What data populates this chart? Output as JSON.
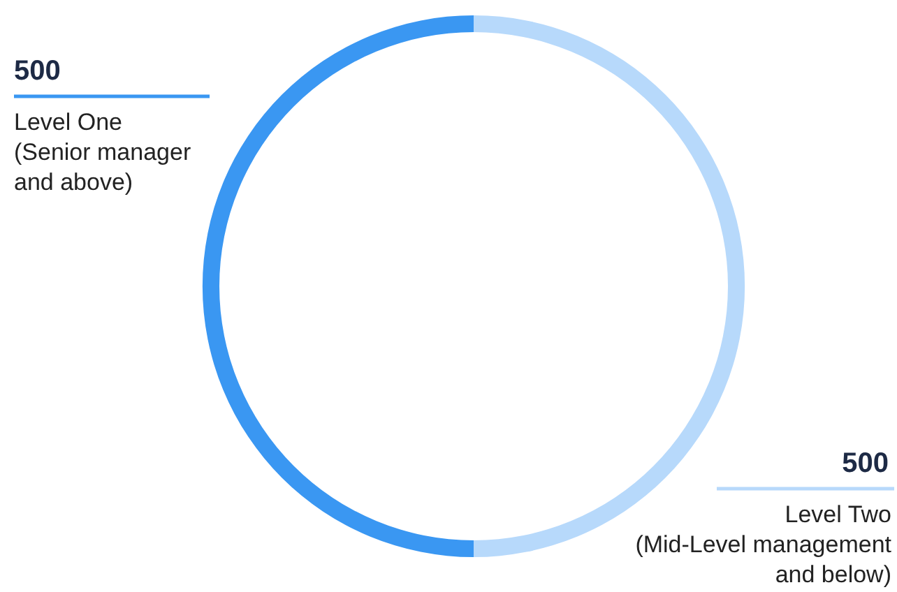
{
  "chart_data": {
    "type": "donut",
    "categories": [
      "Level One\n(Senior manager\nand above)",
      "Level Two\n(Mid-Level management\nand below)"
    ],
    "values": [
      500,
      500
    ],
    "colors": [
      "#3a97f2",
      "#b7d9fb"
    ],
    "data_labels": true
  }
}
